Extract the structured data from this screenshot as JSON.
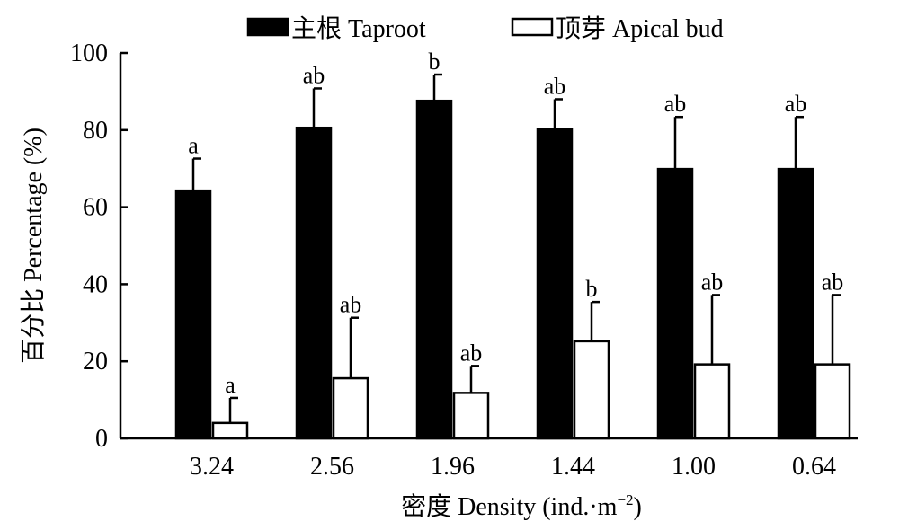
{
  "chart_data": {
    "type": "bar",
    "legend_position": "top",
    "categories": [
      "3.24",
      "2.56",
      "1.96",
      "1.44",
      "1.00",
      "0.64"
    ],
    "series": [
      {
        "name": "主根  Taproot",
        "color": "#000000",
        "fill": "solid",
        "values": [
          64.3,
          80.6,
          87.6,
          80.2,
          69.9,
          69.9
        ],
        "errors": [
          8.3,
          10.2,
          6.8,
          7.8,
          13.5,
          13.5
        ],
        "labels": [
          "a",
          "ab",
          "b",
          "ab",
          "ab",
          "ab"
        ]
      },
      {
        "name": "顶芽 Apical bud",
        "color": "#ffffff",
        "fill": "hollow",
        "values": [
          4.0,
          15.6,
          11.8,
          25.2,
          19.2,
          19.2
        ],
        "errors": [
          6.5,
          15.7,
          7.0,
          10.2,
          18.0,
          18.0
        ],
        "labels": [
          "a",
          "ab",
          "ab",
          "b",
          "ab",
          "ab"
        ]
      }
    ],
    "ylim": [
      0,
      100
    ],
    "yticks": [
      "0",
      "20",
      "40",
      "60",
      "80",
      "100"
    ],
    "ylabel": "百分比  Percentage (%)",
    "xlabel_main": "密度  Density (ind.·m",
    "xlabel_sup": "−2",
    "xlabel_tail": ")",
    "grid": false
  }
}
